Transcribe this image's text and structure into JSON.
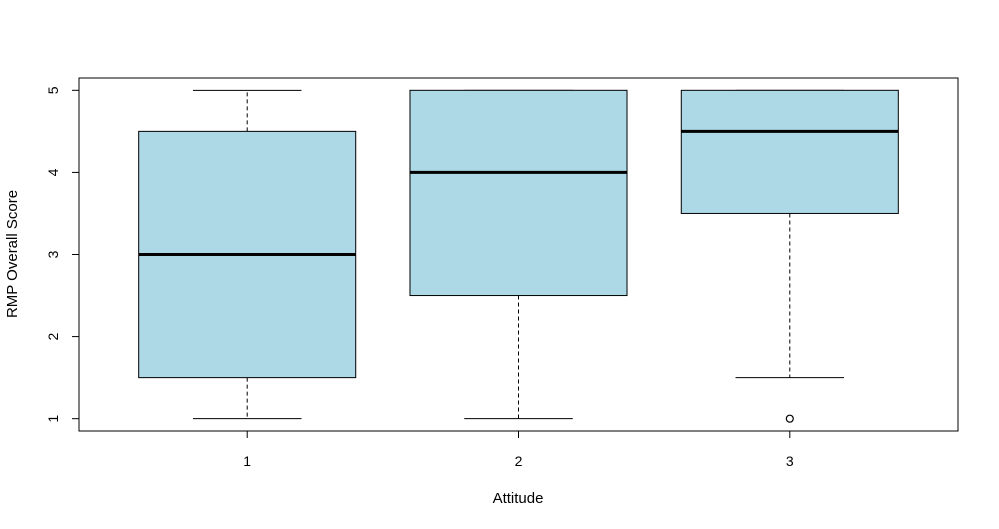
{
  "chart_data": {
    "type": "boxplot",
    "title": "",
    "xlabel": "Attitude",
    "ylabel": "RMP Overall Score",
    "categories": [
      "1",
      "2",
      "3"
    ],
    "ylim": [
      0.85,
      5.15
    ],
    "y_ticks": [
      "1",
      "2",
      "3",
      "4",
      "5"
    ],
    "box_fill": "#add8e6",
    "series": [
      {
        "category": "1",
        "whisker_low": 1,
        "q1": 1.5,
        "median": 3,
        "q3": 4.5,
        "whisker_high": 5,
        "outliers": []
      },
      {
        "category": "2",
        "whisker_low": 1,
        "q1": 2.5,
        "median": 4,
        "q3": 5,
        "whisker_high": 5,
        "outliers": []
      },
      {
        "category": "3",
        "whisker_low": 1.5,
        "q1": 3.5,
        "median": 4.5,
        "q3": 5,
        "whisker_high": 5,
        "outliers": [
          1
        ]
      }
    ],
    "grid": false,
    "legend": "none"
  }
}
